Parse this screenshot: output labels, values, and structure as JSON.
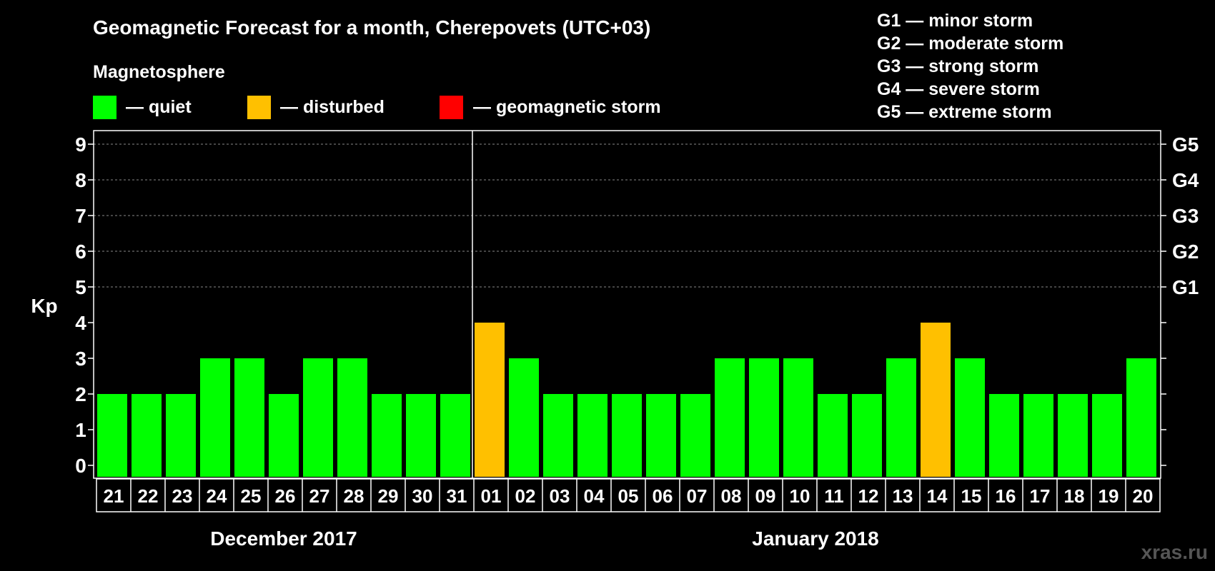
{
  "title": "Geomagnetic Forecast for a month, Cherepovets (UTC+03)",
  "subtitle": "Magnetosphere",
  "colors": {
    "quiet": "#00ff00",
    "disturbed": "#ffc000",
    "storm": "#ff0000",
    "background": "#000000",
    "grid": "#888888"
  },
  "legend": [
    {
      "key": "quiet",
      "label": "— quiet"
    },
    {
      "key": "disturbed",
      "label": "— disturbed"
    },
    {
      "key": "storm",
      "label": "— geomagnetic storm"
    }
  ],
  "storm_levels": [
    "G1 — minor storm",
    "G2 — moderate storm",
    "G3 — strong storm",
    "G4 — severe storm",
    "G5 — extreme storm"
  ],
  "watermark": "xras.ru",
  "chart_data": {
    "type": "bar",
    "title": "Geomagnetic Forecast for a month, Cherepovets (UTC+03)",
    "ylabel": "Kp",
    "ylim": [
      0,
      9
    ],
    "yticks": [
      "0",
      "1",
      "2",
      "3",
      "4",
      "5",
      "6",
      "7",
      "8",
      "9"
    ],
    "right_ticks": [
      {
        "kp": 5,
        "label": "G1"
      },
      {
        "kp": 6,
        "label": "G2"
      },
      {
        "kp": 7,
        "label": "G3"
      },
      {
        "kp": 8,
        "label": "G4"
      },
      {
        "kp": 9,
        "label": "G5"
      }
    ],
    "grid": true,
    "categories": [
      "21",
      "22",
      "23",
      "24",
      "25",
      "26",
      "27",
      "28",
      "29",
      "30",
      "31",
      "01",
      "02",
      "03",
      "04",
      "05",
      "06",
      "07",
      "08",
      "09",
      "10",
      "11",
      "12",
      "13",
      "14",
      "15",
      "16",
      "17",
      "18",
      "19",
      "20"
    ],
    "values": [
      2,
      2,
      2,
      3,
      3,
      2,
      3,
      3,
      2,
      2,
      2,
      4,
      3,
      2,
      2,
      2,
      2,
      2,
      3,
      3,
      3,
      2,
      2,
      3,
      4,
      3,
      2,
      2,
      2,
      2,
      3
    ],
    "status": [
      "quiet",
      "quiet",
      "quiet",
      "quiet",
      "quiet",
      "quiet",
      "quiet",
      "quiet",
      "quiet",
      "quiet",
      "quiet",
      "disturbed",
      "quiet",
      "quiet",
      "quiet",
      "quiet",
      "quiet",
      "quiet",
      "quiet",
      "quiet",
      "quiet",
      "quiet",
      "quiet",
      "quiet",
      "disturbed",
      "quiet",
      "quiet",
      "quiet",
      "quiet",
      "quiet",
      "quiet"
    ],
    "months": [
      {
        "label": "December 2017",
        "start": 0,
        "end": 10
      },
      {
        "label": "January 2018",
        "start": 11,
        "end": 30
      }
    ]
  }
}
